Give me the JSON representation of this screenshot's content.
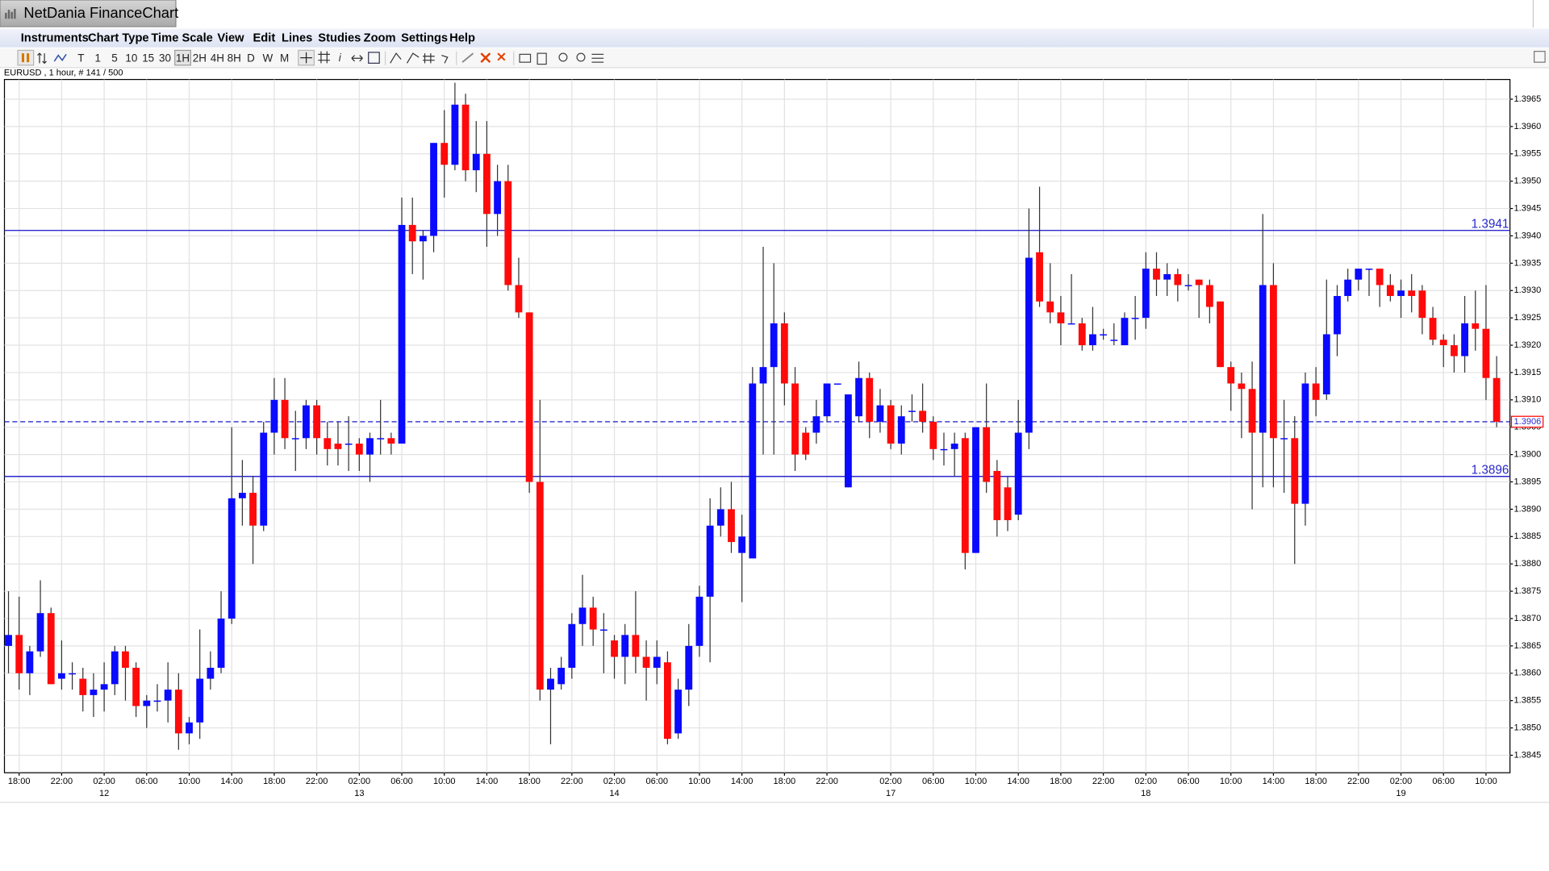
{
  "window": {
    "title": "NetDania FinanceChart"
  },
  "menu": [
    "Instruments",
    "Chart Type",
    "Time Scale",
    "View",
    "Edit",
    "Lines",
    "Studies",
    "Zoom",
    "Settings",
    "Help"
  ],
  "toolbar": {
    "timeframes": [
      "T",
      "1",
      "5",
      "10",
      "15",
      "30",
      "1H",
      "2H",
      "4H",
      "8H",
      "D",
      "W",
      "M"
    ],
    "selected": "1H"
  },
  "chart_data": {
    "type": "candlestick",
    "title": "EURUSD , 1 hour, # 141 / 500",
    "up_color": "#0a0aff",
    "down_color": "#ff0a0a",
    "wick_color": "#333333",
    "grid": true,
    "lines": [
      {
        "value": 1.3941,
        "style": "solid",
        "color": "#2a2acc"
      },
      {
        "value": 1.3896,
        "style": "solid",
        "color": "#2a2acc"
      }
    ],
    "last_price": {
      "value": 1.3906,
      "style": "dashed",
      "color": "#2a2acc",
      "label_border": "#ff0000"
    },
    "ylim": [
      1.38418,
      1.39686
    ],
    "yticks": [
      1.3845,
      {
        "value": 1.385,
        "label": "1.3850"
      },
      1.3855,
      {
        "value": 1.386,
        "label": "1.3860"
      },
      1.3865,
      {
        "value": 1.387,
        "label": "1.3870"
      },
      1.3875,
      {
        "value": 1.388,
        "label": "1.3880"
      },
      1.3885,
      {
        "value": 1.389,
        "label": "1.3890"
      },
      1.3895,
      {
        "value": 1.39,
        "label": "1.3900"
      },
      1.3905,
      {
        "value": 1.391,
        "label": "1.3910"
      },
      1.3915,
      {
        "value": 1.392,
        "label": "1.3920"
      },
      1.3925,
      {
        "value": 1.393,
        "label": "1.3930"
      },
      1.3935,
      {
        "value": 1.394,
        "label": "1.3940"
      },
      1.3945,
      {
        "value": 1.395,
        "label": "1.3950"
      },
      1.3955,
      {
        "value": 1.396,
        "label": "1.3960"
      },
      1.3965
    ],
    "categories": [
      null,
      "18:00",
      null,
      null,
      null,
      "22:00",
      null,
      null,
      null,
      "02:00",
      null,
      null,
      null,
      "06:00",
      null,
      null,
      null,
      "10:00",
      null,
      null,
      null,
      "14:00",
      null,
      null,
      null,
      "18:00",
      null,
      null,
      null,
      "22:00",
      null,
      null,
      null,
      "02:00",
      null,
      null,
      null,
      "06:00",
      null,
      null,
      null,
      "10:00",
      null,
      null,
      null,
      "14:00",
      null,
      null,
      null,
      "18:00",
      null,
      null,
      null,
      "22:00",
      null,
      null,
      null,
      "02:00",
      null,
      null,
      null,
      "06:00",
      null,
      null,
      null,
      "10:00",
      null,
      null,
      null,
      "14:00",
      null,
      null,
      null,
      "18:00",
      null,
      null,
      null,
      "22:00",
      null,
      null,
      null,
      null,
      null,
      "02:00",
      null,
      null,
      null,
      "06:00",
      null,
      null,
      null,
      "10:00",
      null,
      null,
      null,
      "14:00",
      null,
      null,
      null,
      "18:00",
      null,
      null,
      null,
      "22:00",
      null,
      null,
      null,
      "02:00",
      null,
      null,
      null,
      "06:00",
      null,
      null,
      null,
      "10:00",
      null,
      null,
      null,
      "14:00",
      null,
      null,
      null,
      "18:00",
      null,
      null,
      null,
      "22:00",
      null,
      null,
      null,
      "02:00",
      null,
      null,
      null,
      "06:00",
      null,
      null,
      null,
      "10:00",
      null
    ],
    "dates": [
      null,
      null,
      null,
      null,
      null,
      null,
      null,
      null,
      null,
      "12",
      null,
      null,
      null,
      null,
      null,
      null,
      null,
      null,
      null,
      null,
      null,
      null,
      null,
      null,
      null,
      null,
      null,
      null,
      null,
      null,
      null,
      null,
      null,
      "13",
      null,
      null,
      null,
      null,
      null,
      null,
      null,
      null,
      null,
      null,
      null,
      null,
      null,
      null,
      null,
      null,
      null,
      null,
      null,
      null,
      null,
      null,
      null,
      "14",
      null,
      null,
      null,
      null,
      null,
      null,
      null,
      null,
      null,
      null,
      null,
      null,
      null,
      null,
      null,
      null,
      null,
      null,
      null,
      null,
      null,
      null,
      null,
      null,
      null,
      "17",
      null,
      null,
      null,
      null,
      null,
      null,
      null,
      null,
      null,
      null,
      null,
      null,
      null,
      null,
      null,
      null,
      null,
      null,
      null,
      null,
      null,
      null,
      null,
      "18",
      null,
      null,
      null,
      null,
      null,
      null,
      null,
      null,
      null,
      null,
      null,
      null,
      null,
      null,
      null,
      null,
      null,
      null,
      null,
      null,
      null,
      null,
      null,
      "19",
      null,
      null,
      null,
      null,
      null,
      null,
      null,
      null,
      null
    ],
    "open": [
      1.3865,
      1.3867,
      1.386,
      1.3864,
      1.3871,
      1.3859,
      1.386,
      1.3859,
      1.3856,
      1.3857,
      1.3858,
      1.3864,
      1.3861,
      1.3854,
      1.3855,
      1.3855,
      1.3857,
      1.3849,
      1.3851,
      1.3859,
      1.3861,
      1.387,
      1.3892,
      1.3893,
      1.3887,
      1.3904,
      1.391,
      1.3903,
      1.3903,
      1.3909,
      1.3903,
      1.3902,
      1.3902,
      1.3902,
      1.39,
      1.3903,
      1.3903,
      1.3902,
      1.3942,
      1.3939,
      1.394,
      1.3957,
      1.3953,
      1.3964,
      1.3952,
      1.3955,
      1.3944,
      1.395,
      1.3931,
      1.3926,
      1.3895,
      1.3857,
      1.3858,
      1.3861,
      1.3869,
      1.3872,
      1.3868,
      1.3866,
      1.3863,
      1.3867,
      1.3863,
      1.3861,
      1.3862,
      1.3849,
      1.3857,
      1.3865,
      1.3874,
      1.3887,
      1.389,
      1.3882,
      1.3881,
      1.3913,
      1.3916,
      1.3924,
      1.3913,
      1.3904,
      1.3904,
      1.3907,
      1.3913,
      1.3894,
      1.3907,
      1.3914,
      1.3906,
      1.3909,
      1.3902,
      1.3908,
      1.3908,
      1.3906,
      1.3901,
      1.3901,
      1.3903,
      1.3882,
      1.3905,
      1.3897,
      1.3894,
      1.3889,
      1.3904,
      1.3937,
      1.3928,
      1.3926,
      1.3924,
      1.3924,
      1.392,
      1.3922,
      1.3921,
      1.392,
      1.3925,
      1.3925,
      1.3934,
      1.3932,
      1.3933,
      1.3931,
      1.3932,
      1.3931,
      1.3928,
      1.3916,
      1.3913,
      1.3912,
      1.3904,
      1.3931,
      1.3903,
      1.3903,
      1.3891,
      1.3913,
      1.3911,
      1.3922,
      1.3929,
      1.3932,
      1.3934,
      1.3934,
      1.3931,
      1.3929,
      1.393,
      1.393,
      1.3925,
      1.3921,
      1.392,
      1.3918,
      1.3924,
      1.3923,
      1.3914
    ],
    "high": [
      1.3875,
      1.3874,
      1.3865,
      1.3877,
      1.3872,
      1.3866,
      1.3862,
      1.3861,
      1.386,
      1.3862,
      1.3865,
      1.3865,
      1.3862,
      1.3856,
      1.3858,
      1.3862,
      1.386,
      1.3852,
      1.3868,
      1.3864,
      1.3875,
      1.3905,
      1.3899,
      1.3896,
      1.3906,
      1.3914,
      1.3914,
      1.3908,
      1.391,
      1.391,
      1.3906,
      1.3906,
      1.3907,
      1.3903,
      1.3904,
      1.391,
      1.3904,
      1.3947,
      1.3947,
      1.3941,
      1.3957,
      1.3963,
      1.3968,
      1.3966,
      1.3961,
      1.3961,
      1.3953,
      1.3953,
      1.3936,
      1.3926,
      1.391,
      1.3861,
      1.3863,
      1.3871,
      1.3878,
      1.3874,
      1.3871,
      1.3867,
      1.3869,
      1.3875,
      1.3866,
      1.3866,
      1.3864,
      1.3859,
      1.3869,
      1.3876,
      1.3892,
      1.3894,
      1.3895,
      1.3889,
      1.3916,
      1.3938,
      1.3935,
      1.3926,
      1.3916,
      1.3905,
      1.391,
      1.3913,
      1.3913,
      1.3911,
      1.3917,
      1.3915,
      1.3912,
      1.391,
      1.3909,
      1.3911,
      1.3913,
      1.3907,
      1.3904,
      1.3904,
      1.3904,
      1.3905,
      1.3913,
      1.3899,
      1.3896,
      1.391,
      1.3945,
      1.3949,
      1.3935,
      1.3929,
      1.3933,
      1.3925,
      1.3927,
      1.3923,
      1.3924,
      1.3926,
      1.3929,
      1.3937,
      1.3937,
      1.3935,
      1.3934,
      1.3933,
      1.3932,
      1.3932,
      1.3928,
      1.3917,
      1.3915,
      1.3917,
      1.3944,
      1.3935,
      1.391,
      1.3907,
      1.3915,
      1.3916,
      1.3932,
      1.3931,
      1.3934,
      1.3934,
      1.3934,
      1.3934,
      1.3933,
      1.3932,
      1.3933,
      1.3931,
      1.3927,
      1.3922,
      1.3922,
      1.3929,
      1.393,
      1.3931,
      1.3918
    ],
    "low": [
      1.386,
      1.3857,
      1.3856,
      1.3863,
      1.3858,
      1.3857,
      1.3857,
      1.3853,
      1.3852,
      1.3853,
      1.3856,
      1.3855,
      1.3852,
      1.385,
      1.3853,
      1.3851,
      1.3846,
      1.3847,
      1.3848,
      1.3857,
      1.386,
      1.3869,
      1.3887,
      1.388,
      1.3886,
      1.39,
      1.3901,
      1.3897,
      1.3901,
      1.39,
      1.3898,
      1.3898,
      1.3897,
      1.3897,
      1.3895,
      1.39,
      1.39,
      1.3902,
      1.3933,
      1.3932,
      1.3937,
      1.3947,
      1.3952,
      1.395,
      1.3948,
      1.3938,
      1.394,
      1.393,
      1.3925,
      1.3893,
      1.3855,
      1.3847,
      1.3857,
      1.3859,
      1.3865,
      1.3865,
      1.386,
      1.3859,
      1.3858,
      1.386,
      1.3855,
      1.3858,
      1.3847,
      1.3848,
      1.3854,
      1.3863,
      1.3862,
      1.3885,
      1.3882,
      1.3873,
      1.3881,
      1.39,
      1.39,
      1.3909,
      1.3897,
      1.3899,
      1.3902,
      1.3906,
      1.3913,
      1.3894,
      1.3906,
      1.3903,
      1.3904,
      1.3901,
      1.39,
      1.3906,
      1.3904,
      1.3899,
      1.3898,
      1.3896,
      1.3879,
      1.3882,
      1.3893,
      1.3885,
      1.3886,
      1.3888,
      1.3901,
      1.3927,
      1.3924,
      1.392,
      1.3924,
      1.3919,
      1.3919,
      1.3921,
      1.392,
      1.392,
      1.3921,
      1.3923,
      1.3929,
      1.3929,
      1.3928,
      1.393,
      1.3925,
      1.3924,
      1.3916,
      1.3908,
      1.3903,
      1.389,
      1.3894,
      1.3894,
      1.3893,
      1.388,
      1.3887,
      1.3907,
      1.391,
      1.3918,
      1.3928,
      1.393,
      1.3929,
      1.3927,
      1.3928,
      1.3925,
      1.3926,
      1.3922,
      1.392,
      1.3916,
      1.3915,
      1.3915,
      1.3919,
      1.391,
      1.3905
    ],
    "close": [
      1.3867,
      1.386,
      1.3864,
      1.3871,
      1.3858,
      1.386,
      1.386,
      1.3856,
      1.3857,
      1.3858,
      1.3864,
      1.3861,
      1.3854,
      1.3855,
      1.3855,
      1.3857,
      1.3849,
      1.3851,
      1.3859,
      1.3861,
      1.387,
      1.3892,
      1.3893,
      1.3887,
      1.3904,
      1.391,
      1.3903,
      1.3903,
      1.3909,
      1.3903,
      1.3901,
      1.3901,
      1.3902,
      1.39,
      1.3903,
      1.3903,
      1.3902,
      1.3942,
      1.3939,
      1.394,
      1.3957,
      1.3953,
      1.3964,
      1.3952,
      1.3955,
      1.3944,
      1.395,
      1.3931,
      1.3926,
      1.3895,
      1.3857,
      1.3859,
      1.3861,
      1.3869,
      1.3872,
      1.3868,
      1.3868,
      1.3863,
      1.3867,
      1.3863,
      1.3861,
      1.3863,
      1.3848,
      1.3857,
      1.3865,
      1.3874,
      1.3887,
      1.389,
      1.3884,
      1.3885,
      1.3913,
      1.3916,
      1.3924,
      1.3913,
      1.39,
      1.39,
      1.3907,
      1.3913,
      1.3913,
      1.3911,
      1.3914,
      1.3906,
      1.3909,
      1.3902,
      1.3907,
      1.3908,
      1.3906,
      1.3901,
      1.3901,
      1.3902,
      1.3882,
      1.3905,
      1.3895,
      1.3888,
      1.3888,
      1.3904,
      1.3936,
      1.3928,
      1.3926,
      1.3924,
      1.3924,
      1.392,
      1.3922,
      1.3922,
      1.3921,
      1.3925,
      1.3925,
      1.3934,
      1.3932,
      1.3933,
      1.3931,
      1.3931,
      1.3931,
      1.3927,
      1.3916,
      1.3913,
      1.3912,
      1.3904,
      1.3931,
      1.3903,
      1.3903,
      1.3891,
      1.3913,
      1.391,
      1.3922,
      1.3929,
      1.3932,
      1.3934,
      1.3934,
      1.3931,
      1.3929,
      1.393,
      1.3929,
      1.3925,
      1.3921,
      1.392,
      1.3918,
      1.3924,
      1.3923,
      1.3914,
      1.3906
    ]
  }
}
